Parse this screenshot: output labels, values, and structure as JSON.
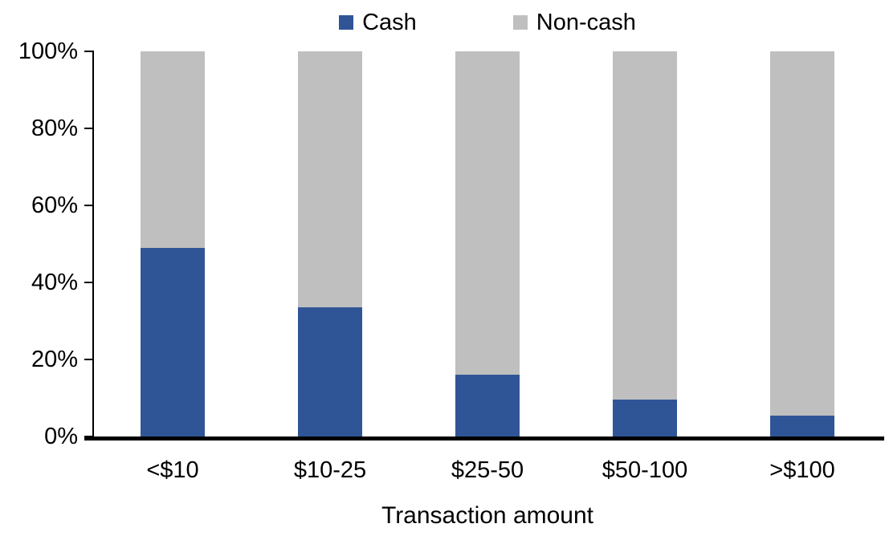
{
  "chart_data": {
    "type": "bar",
    "variant": "stacked-100-percent-column",
    "title": "",
    "xlabel": "Transaction amount",
    "ylabel": "",
    "categories": [
      "<$10",
      "$10-25",
      "$25-50",
      "$50-100",
      ">$100"
    ],
    "series": [
      {
        "name": "Cash",
        "color": "#2F5597",
        "values": [
          49,
          33.5,
          16,
          9.5,
          5.5
        ]
      },
      {
        "name": "Non-cash",
        "color": "#BFBFBF",
        "values": [
          51,
          66.5,
          84,
          90.5,
          94.5
        ]
      }
    ],
    "ylim": [
      0,
      100
    ],
    "y_ticks": [
      "0%",
      "20%",
      "40%",
      "60%",
      "80%",
      "100%"
    ],
    "grid": false,
    "legend_position": "top-center",
    "colors": {
      "axis": "#000000",
      "text": "#000000",
      "background": "#FFFFFF"
    }
  }
}
